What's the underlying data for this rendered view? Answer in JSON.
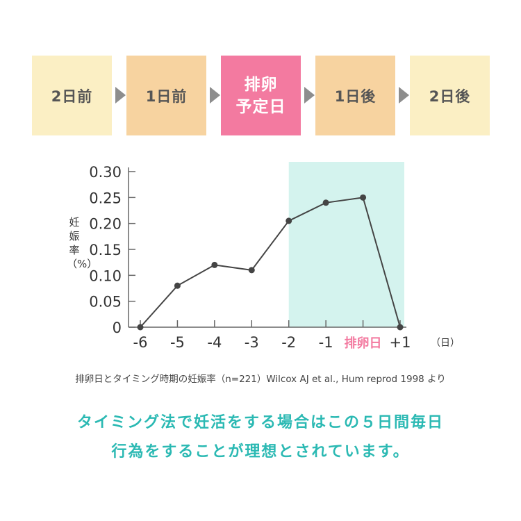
{
  "steps": [
    {
      "label": "2日前",
      "color": "#fbefc4"
    },
    {
      "label": "1日前",
      "color": "#f7d3a0"
    },
    {
      "label": "排卵\n予定日",
      "color": "#f37aa0"
    },
    {
      "label": "1日後",
      "color": "#f7d3a0"
    },
    {
      "label": "2日後",
      "color": "#fbefc4"
    }
  ],
  "ylabel": "妊娠率（%）",
  "chart_data": {
    "type": "line",
    "x_tick_labels": [
      "-6",
      "-5",
      "-4",
      "-3",
      "-2",
      "-1",
      "排卵日",
      "+1"
    ],
    "x_unit": "（日）",
    "x": [
      -6,
      -5,
      -4,
      -3,
      -2,
      -1,
      0,
      1
    ],
    "series": [
      {
        "values": [
          0.0,
          0.08,
          0.12,
          0.11,
          0.205,
          0.24,
          0.25,
          0.0
        ]
      }
    ],
    "y_tick_labels": [
      "0",
      "0.05",
      "0.10",
      "0.15",
      "0.20",
      "0.25",
      "0.30"
    ],
    "y_ticks": [
      0,
      0.05,
      0.1,
      0.15,
      0.2,
      0.25,
      0.3
    ],
    "ylim": [
      0,
      0.3
    ],
    "xlim": [
      -6,
      1
    ],
    "highlight_range": [
      -2,
      1
    ],
    "grid": false,
    "colors": {
      "line": "#444444",
      "highlight": "#d4f3ee",
      "ovulation_label": "#f37aa0"
    }
  },
  "caption": "排卵日とタイミング時期の妊娠率（n=221）Wilcox AJ et al., Hum reprod 1998 より",
  "message": {
    "line1": "タイミング法で妊活をする場合はこの５日間毎日",
    "line2": "行為をすることが理想とされています。"
  }
}
